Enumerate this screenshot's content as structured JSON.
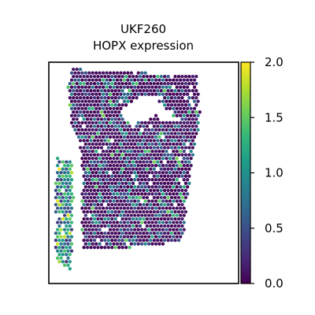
{
  "chart_data": {
    "type": "scatter",
    "subtype": "spatial-hexbin",
    "title": {
      "line1": "UKF260",
      "line2": "HOPX expression"
    },
    "xlabel": "",
    "ylabel": "",
    "axes_ticks_visible": false,
    "grid": false,
    "colormap": "viridis",
    "colorbar": {
      "vmin": 0.0,
      "vmax": 2.0,
      "ticks": [
        0.0,
        0.5,
        1.0,
        1.5,
        2.0
      ],
      "tick_labels": [
        "0.0",
        "0.5",
        "1.0",
        "1.5",
        "2.0"
      ],
      "placement": "right"
    },
    "colors": {
      "viridis_stops": [
        "#440154",
        "#482878",
        "#3e4989",
        "#31688e",
        "#26828e",
        "#1f9e89",
        "#35b779",
        "#6ece58",
        "#b5de2b",
        "#fde725"
      ],
      "background": "#ffffff",
      "frame": "#000000"
    },
    "tissue_regions": {
      "main_block_polygon": [
        [
          0.12,
          0.03
        ],
        [
          0.78,
          0.06
        ],
        [
          0.8,
          0.25
        ],
        [
          0.76,
          0.42
        ],
        [
          0.73,
          0.62
        ],
        [
          0.71,
          0.8
        ],
        [
          0.62,
          0.82
        ],
        [
          0.4,
          0.84
        ],
        [
          0.18,
          0.84
        ],
        [
          0.17,
          0.7
        ],
        [
          0.18,
          0.5
        ],
        [
          0.16,
          0.35
        ],
        [
          0.12,
          0.3
        ],
        [
          0.1,
          0.12
        ]
      ],
      "hole_polygon": [
        [
          0.38,
          0.21
        ],
        [
          0.48,
          0.16
        ],
        [
          0.56,
          0.15
        ],
        [
          0.61,
          0.21
        ],
        [
          0.53,
          0.26
        ],
        [
          0.44,
          0.28
        ],
        [
          0.4,
          0.26
        ]
      ],
      "hole_notch_polygon": [
        [
          0.57,
          0.22
        ],
        [
          0.65,
          0.22
        ],
        [
          0.66,
          0.26
        ],
        [
          0.58,
          0.27
        ]
      ],
      "left_strip_polygon": [
        [
          0.04,
          0.43
        ],
        [
          0.12,
          0.44
        ],
        [
          0.13,
          0.6
        ],
        [
          0.12,
          0.86
        ],
        [
          0.12,
          0.95
        ],
        [
          0.04,
          0.9
        ],
        [
          0.03,
          0.72
        ]
      ],
      "main_mean_expression": 0.25,
      "left_strip_mean_expression": 0.95,
      "spot_spacing": 0.0185
    }
  }
}
